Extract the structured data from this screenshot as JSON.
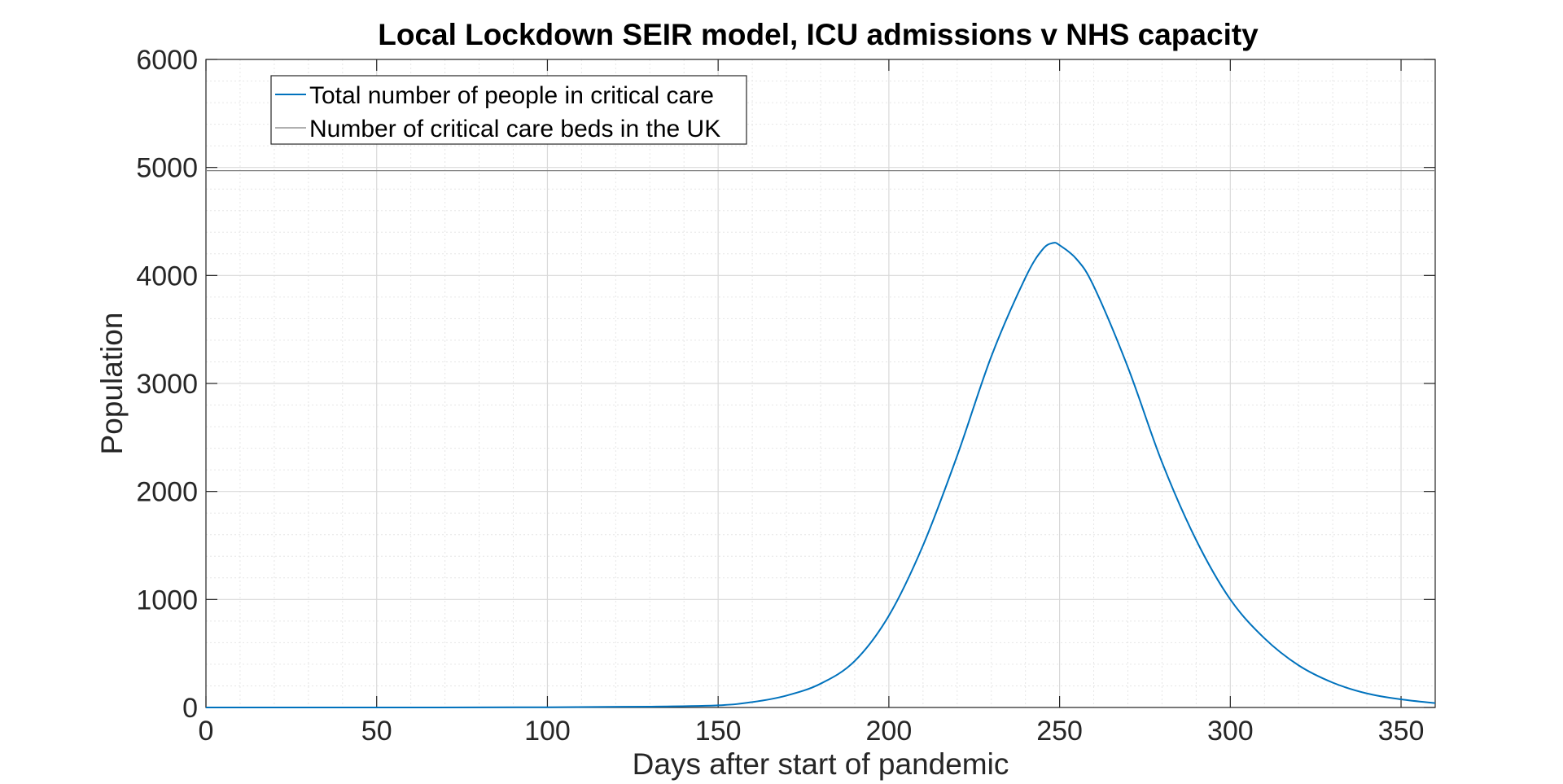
{
  "chart_data": {
    "type": "line",
    "title": "Local Lockdown SEIR model, ICU admissions v NHS capacity",
    "xlabel": "Days after start of pandemic",
    "ylabel": "Population",
    "xlim": [
      0,
      360
    ],
    "ylim": [
      0,
      6000
    ],
    "x_ticks": [
      "0",
      "50",
      "100",
      "150",
      "200",
      "250",
      "300",
      "350"
    ],
    "y_ticks": [
      "0",
      "1000",
      "2000",
      "3000",
      "4000",
      "5000",
      "6000"
    ],
    "grid": true,
    "minor_grid": true,
    "legend_position": "top-left",
    "series": [
      {
        "name": "Total number of people in critical care",
        "color": "#0072BD",
        "x": [
          0,
          50,
          100,
          130,
          150,
          160,
          170,
          180,
          190,
          200,
          210,
          220,
          230,
          240,
          245,
          248,
          250,
          255,
          260,
          270,
          280,
          290,
          300,
          310,
          320,
          330,
          340,
          350,
          360
        ],
        "y": [
          0,
          0,
          2,
          8,
          20,
          50,
          110,
          220,
          430,
          850,
          1500,
          2330,
          3250,
          3980,
          4240,
          4300,
          4280,
          4150,
          3900,
          3150,
          2270,
          1550,
          1000,
          640,
          390,
          230,
          130,
          75,
          40
        ]
      },
      {
        "name": "Number of critical care beds in the UK",
        "color": "#808080",
        "x": [
          0,
          360
        ],
        "y": [
          4970,
          4970
        ]
      }
    ]
  }
}
